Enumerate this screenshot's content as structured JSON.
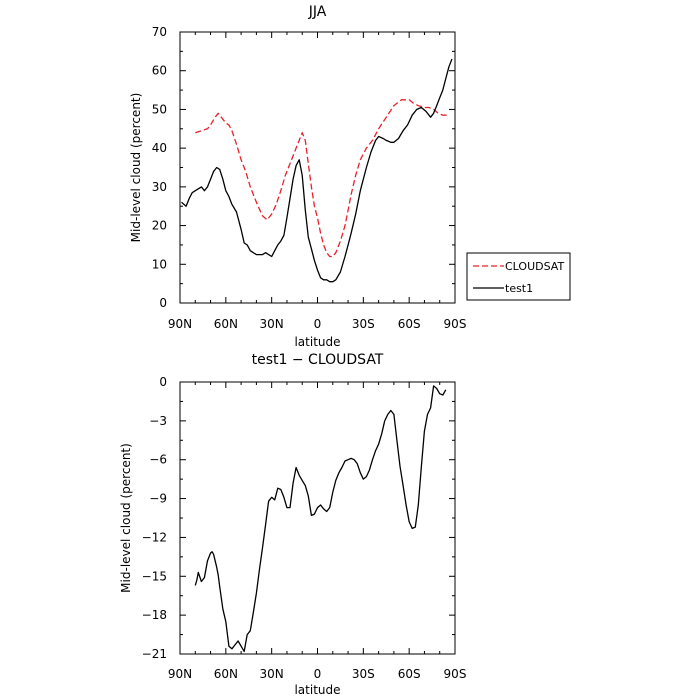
{
  "chart_data": [
    {
      "type": "line",
      "title": "JJA",
      "xlabel": "latitude",
      "ylabel": "Mid-level cloud (percent)",
      "xlim": [
        90,
        -90
      ],
      "ylim": [
        0,
        70
      ],
      "xticks": [
        90,
        60,
        30,
        0,
        -30,
        -60,
        -90
      ],
      "xticklabels": [
        "90N",
        "60N",
        "30N",
        "0",
        "30S",
        "60S",
        "90S"
      ],
      "yticks": [
        0,
        10,
        20,
        30,
        40,
        50,
        60,
        70
      ],
      "yticklabels": [
        "0",
        "10",
        "20",
        "30",
        "40",
        "50",
        "60",
        "70"
      ],
      "grid": false,
      "legend_position": "right",
      "series": [
        {
          "name": "CLOUDSAT",
          "color": "#e8202a",
          "dash": "dashed",
          "x": [
            80,
            76,
            72,
            70,
            67,
            65,
            63,
            60,
            58,
            56,
            53,
            50,
            47,
            44,
            40,
            36,
            33,
            30,
            27,
            24,
            21,
            18,
            16,
            14,
            12,
            10,
            8,
            6,
            4,
            2,
            0,
            -2,
            -4,
            -6,
            -8,
            -10,
            -12,
            -15,
            -18,
            -20,
            -22,
            -25,
            -28,
            -32,
            -36,
            -40,
            -45,
            -50,
            -55,
            -60,
            -63,
            -66,
            -70,
            -73,
            -76,
            -79,
            -82,
            -85
          ],
          "y": [
            44,
            44.5,
            45,
            46,
            48,
            49,
            48,
            46.5,
            46,
            44.5,
            41,
            37,
            34,
            30,
            26,
            22.5,
            21.5,
            23,
            25.5,
            29,
            33,
            36,
            38,
            40,
            42,
            44,
            42,
            36,
            30,
            25,
            22,
            18,
            15,
            13,
            12,
            12,
            13,
            16,
            20,
            24,
            28,
            33,
            37,
            40,
            42,
            45,
            48,
            51,
            52.5,
            52.5,
            51.5,
            51,
            50.5,
            50.5,
            50,
            49,
            48.5,
            48.5
          ]
        },
        {
          "name": "test1",
          "color": "#000000",
          "dash": "solid",
          "x": [
            89,
            86,
            84,
            82,
            80,
            78,
            76,
            74,
            72,
            70,
            68,
            66,
            64,
            62,
            60,
            58,
            56,
            53,
            50,
            48,
            46,
            44,
            42,
            40,
            38,
            36,
            34,
            32,
            30,
            28,
            26,
            24,
            22,
            20,
            18,
            16,
            14,
            12,
            10,
            8,
            6,
            4,
            2,
            0,
            -2,
            -4,
            -6,
            -8,
            -10,
            -12,
            -15,
            -18,
            -20,
            -22,
            -25,
            -28,
            -32,
            -35,
            -38,
            -40,
            -43,
            -45,
            -48,
            -50,
            -53,
            -56,
            -59,
            -62,
            -65,
            -68,
            -71,
            -74,
            -76,
            -78,
            -80,
            -82,
            -84,
            -86,
            -88
          ],
          "y": [
            26,
            25,
            27,
            28.5,
            29,
            29.5,
            30,
            29,
            30,
            32,
            34,
            35,
            34.5,
            32,
            29,
            27.5,
            25.5,
            23.5,
            19,
            15.5,
            15,
            13.5,
            13,
            12.5,
            12.5,
            12.5,
            13,
            12.5,
            12,
            13.5,
            15,
            16,
            17.5,
            22,
            27,
            32,
            35.5,
            37,
            33,
            24,
            17,
            14,
            11,
            8.5,
            6.5,
            6,
            6,
            5.5,
            5.5,
            6,
            8,
            12,
            15,
            18,
            23,
            29,
            35,
            39,
            42,
            43,
            42.5,
            42,
            41.5,
            41.5,
            42.5,
            44.5,
            46,
            48.5,
            50,
            50.5,
            49.5,
            48,
            49,
            51,
            53,
            55,
            58,
            61,
            63
          ]
        }
      ]
    },
    {
      "type": "line",
      "title": "test1 − CLOUDSAT",
      "xlabel": "latitude",
      "ylabel": "Mid-level cloud (percent)",
      "xlim": [
        90,
        -90
      ],
      "ylim": [
        -21,
        0
      ],
      "xticks": [
        90,
        60,
        30,
        0,
        -30,
        -60,
        -90
      ],
      "xticklabels": [
        "90N",
        "60N",
        "30N",
        "0",
        "30S",
        "60S",
        "90S"
      ],
      "yticks": [
        0,
        -3,
        -6,
        -9,
        -12,
        -15,
        -18,
        -21
      ],
      "yticklabels": [
        "0",
        "−3",
        "−6",
        "−9",
        "−12",
        "−15",
        "−18",
        "−21"
      ],
      "grid": false,
      "series": [
        {
          "color": "#000000",
          "dash": "solid",
          "x": [
            80,
            79,
            78,
            76,
            74,
            72,
            70,
            69,
            68,
            67,
            66,
            65,
            64,
            62,
            60,
            58,
            56,
            54,
            52,
            50,
            48,
            46,
            44,
            42,
            40,
            38,
            36,
            34,
            32,
            30,
            28,
            26,
            24,
            22,
            20,
            18,
            16,
            14,
            12,
            10,
            8,
            6,
            4,
            2,
            0,
            -2,
            -4,
            -6,
            -8,
            -10,
            -12,
            -14,
            -16,
            -18,
            -20,
            -22,
            -24,
            -26,
            -28,
            -30,
            -32,
            -34,
            -36,
            -38,
            -40,
            -42,
            -44,
            -46,
            -48,
            -50,
            -52,
            -54,
            -56,
            -58,
            -60,
            -62,
            -64,
            -66,
            -68,
            -70,
            -72,
            -74,
            -76,
            -78,
            -80,
            -82,
            -84
          ],
          "y": [
            -15.7,
            -15.3,
            -14.7,
            -15.4,
            -15.1,
            -13.8,
            -13.2,
            -13.1,
            -13.3,
            -13.8,
            -14.3,
            -14.9,
            -15.8,
            -17.5,
            -18.5,
            -20.4,
            -20.6,
            -20.3,
            -20.0,
            -20.4,
            -20.8,
            -19.5,
            -19.2,
            -17.8,
            -16.3,
            -14.5,
            -12.8,
            -11.0,
            -9.2,
            -8.9,
            -9.1,
            -8.2,
            -8.3,
            -8.9,
            -9.7,
            -9.7,
            -7.8,
            -6.6,
            -7.2,
            -7.6,
            -8.0,
            -8.8,
            -10.3,
            -10.2,
            -9.7,
            -9.5,
            -9.8,
            -10.0,
            -9.7,
            -8.5,
            -7.6,
            -7.0,
            -6.6,
            -6.1,
            -6.0,
            -5.9,
            -6.0,
            -6.3,
            -7.0,
            -7.5,
            -7.3,
            -6.8,
            -6.0,
            -5.3,
            -4.8,
            -4.0,
            -3.0,
            -2.5,
            -2.2,
            -2.5,
            -4.5,
            -6.5,
            -8.0,
            -9.5,
            -10.8,
            -11.3,
            -11.2,
            -9.5,
            -6.5,
            -3.8,
            -2.5,
            -2.0,
            -0.3,
            -0.5,
            -0.9,
            -1.0,
            -0.6
          ]
        }
      ]
    }
  ],
  "legend": [
    {
      "label": "CLOUDSAT",
      "color": "#e8202a",
      "dash": "dashed"
    },
    {
      "label": "test1",
      "color": "#000000",
      "dash": "solid"
    }
  ]
}
